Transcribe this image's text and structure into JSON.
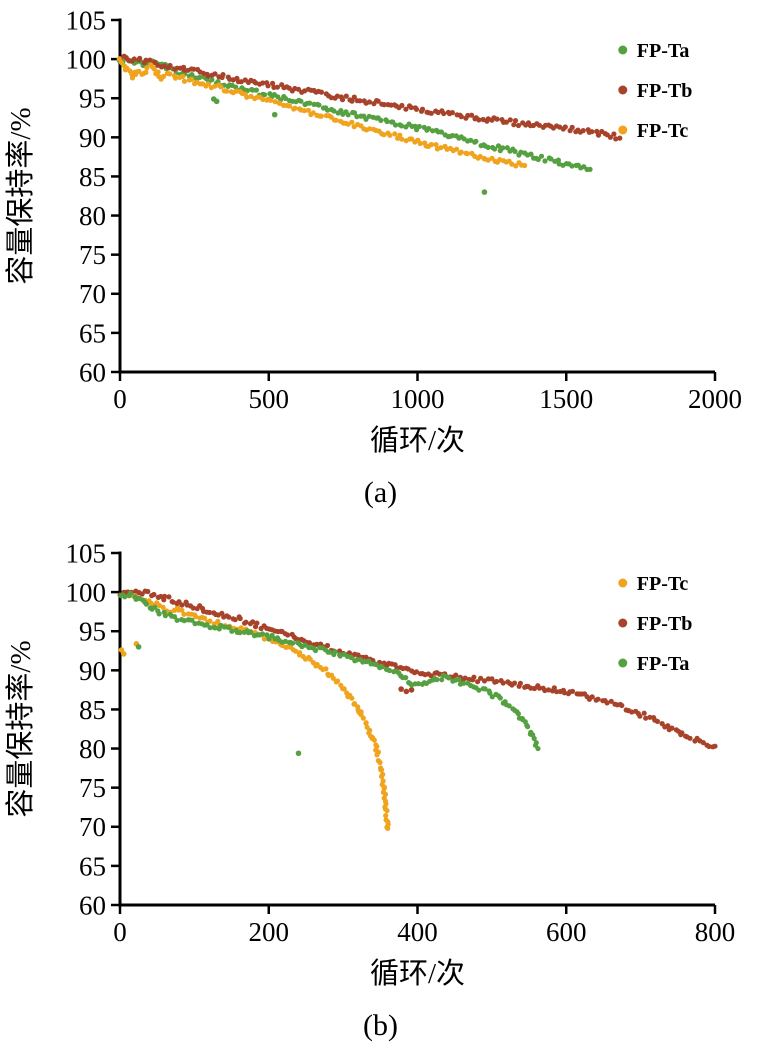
{
  "chart_data": [
    {
      "type": "scatter",
      "panel": "(a)",
      "xlabel": "循环/次",
      "ylabel": "容量保持率/%",
      "xlim": [
        0,
        2000
      ],
      "ylim": [
        60,
        105
      ],
      "x_ticks": [
        0,
        500,
        1000,
        1500,
        2000
      ],
      "y_ticks": [
        60,
        65,
        70,
        75,
        80,
        85,
        90,
        95,
        100,
        105
      ],
      "grid": false,
      "legend_position": "top-right",
      "legend": [
        "FP-Ta",
        "FP-Tb",
        "FP-Tc"
      ],
      "series": [
        {
          "name": "FP-Ta",
          "color": "#55A041",
          "anchors": [
            [
              0,
              99.7
            ],
            [
              40,
              99.9
            ],
            [
              80,
              99.2
            ],
            [
              120,
              99.6
            ],
            [
              160,
              98.9
            ],
            [
              200,
              98.3
            ],
            [
              260,
              97.7
            ],
            [
              320,
              97.0
            ],
            [
              400,
              96.3
            ],
            [
              500,
              95.4
            ],
            [
              600,
              94.5
            ],
            [
              700,
              93.6
            ],
            [
              800,
              92.8
            ],
            [
              900,
              92.0
            ],
            [
              1000,
              91.2
            ],
            [
              1100,
              90.3
            ],
            [
              1200,
              89.3
            ],
            [
              1300,
              88.4
            ],
            [
              1400,
              87.5
            ],
            [
              1500,
              86.6
            ],
            [
              1580,
              85.9
            ]
          ],
          "outliers": [
            [
              315,
              94.9
            ],
            [
              325,
              94.6
            ],
            [
              520,
              92.9
            ],
            [
              1225,
              83.0
            ]
          ]
        },
        {
          "name": "FP-Tb",
          "color": "#A8432B",
          "anchors": [
            [
              0,
              100.2
            ],
            [
              50,
              100.0
            ],
            [
              100,
              99.6
            ],
            [
              150,
              99.2
            ],
            [
              200,
              98.8
            ],
            [
              300,
              98.1
            ],
            [
              400,
              97.4
            ],
            [
              500,
              96.7
            ],
            [
              600,
              96.1
            ],
            [
              700,
              95.4
            ],
            [
              800,
              94.8
            ],
            [
              900,
              94.2
            ],
            [
              1000,
              93.6
            ],
            [
              1100,
              93.0
            ],
            [
              1200,
              92.5
            ],
            [
              1300,
              92.0
            ],
            [
              1400,
              91.5
            ],
            [
              1500,
              91.1
            ],
            [
              1600,
              90.6
            ],
            [
              1650,
              90.3
            ],
            [
              1680,
              89.9
            ]
          ],
          "outliers": []
        },
        {
          "name": "FP-Tc",
          "color": "#F0A41E",
          "anchors": [
            [
              0,
              99.9
            ],
            [
              15,
              99.2
            ],
            [
              30,
              98.2
            ],
            [
              45,
              97.8
            ],
            [
              60,
              98.6
            ],
            [
              80,
              97.9
            ],
            [
              100,
              99.0
            ],
            [
              120,
              98.3
            ],
            [
              140,
              97.6
            ],
            [
              160,
              98.0
            ],
            [
              200,
              97.6
            ],
            [
              300,
              96.7
            ],
            [
              400,
              95.7
            ],
            [
              500,
              94.7
            ],
            [
              600,
              93.6
            ],
            [
              700,
              92.5
            ],
            [
              800,
              91.5
            ],
            [
              900,
              90.4
            ],
            [
              1000,
              89.4
            ],
            [
              1100,
              88.5
            ],
            [
              1200,
              87.5
            ],
            [
              1280,
              86.9
            ],
            [
              1360,
              86.4
            ]
          ],
          "outliers": []
        }
      ]
    },
    {
      "type": "scatter",
      "panel": "(b)",
      "xlabel": "循环/次",
      "ylabel": "容量保持率/%",
      "xlim": [
        0,
        800
      ],
      "ylim": [
        60,
        105
      ],
      "x_ticks": [
        0,
        200,
        400,
        600,
        800
      ],
      "y_ticks": [
        60,
        65,
        70,
        75,
        80,
        85,
        90,
        95,
        100,
        105
      ],
      "grid": false,
      "legend_position": "top-right",
      "legend": [
        "FP-Tc",
        "FP-Tb",
        "FP-Ta"
      ],
      "series": [
        {
          "name": "FP-Tc",
          "color": "#F0A41E",
          "anchors": [
            [
              8,
              99.7
            ],
            [
              20,
              99.4
            ],
            [
              35,
              98.9
            ],
            [
              50,
              98.4
            ],
            [
              65,
              97.6
            ],
            [
              80,
              97.9
            ],
            [
              95,
              97.0
            ],
            [
              110,
              96.5
            ],
            [
              130,
              96.0
            ],
            [
              150,
              95.5
            ],
            [
              170,
              95.0
            ],
            [
              190,
              94.4
            ],
            [
              210,
              93.7
            ],
            [
              230,
              92.8
            ],
            [
              250,
              91.7
            ],
            [
              270,
              90.4
            ],
            [
              285,
              89.2
            ],
            [
              300,
              87.8
            ],
            [
              312,
              86.3
            ],
            [
              322,
              84.8
            ],
            [
              331,
              83.2
            ],
            [
              339,
              81.5
            ],
            [
              345,
              79.8
            ],
            [
              350,
              77.8
            ],
            [
              354,
              75.5
            ],
            [
              357,
              73.0
            ],
            [
              359,
              70.8
            ],
            [
              360,
              69.8
            ]
          ],
          "outliers": [
            [
              2,
              92.6
            ],
            [
              5,
              92.1
            ],
            [
              22,
              93.4
            ]
          ]
        },
        {
          "name": "FP-Tb",
          "color": "#A8432B",
          "anchors": [
            [
              0,
              99.9
            ],
            [
              25,
              100.1
            ],
            [
              50,
              99.5
            ],
            [
              80,
              98.7
            ],
            [
              110,
              97.9
            ],
            [
              140,
              97.1
            ],
            [
              170,
              96.2
            ],
            [
              200,
              95.3
            ],
            [
              230,
              94.4
            ],
            [
              260,
              93.5
            ],
            [
              290,
              92.6
            ],
            [
              320,
              91.7
            ],
            [
              350,
              90.9
            ],
            [
              380,
              90.2
            ],
            [
              400,
              89.8
            ],
            [
              430,
              89.4
            ],
            [
              460,
              89.0
            ],
            [
              490,
              88.7
            ],
            [
              520,
              88.4
            ],
            [
              550,
              88.0
            ],
            [
              580,
              87.6
            ],
            [
              610,
              87.1
            ],
            [
              640,
              86.4
            ],
            [
              660,
              85.8
            ],
            [
              680,
              85.1
            ],
            [
              700,
              84.4
            ],
            [
              720,
              83.6
            ],
            [
              740,
              82.7
            ],
            [
              760,
              81.7
            ],
            [
              780,
              80.9
            ],
            [
              800,
              80.3
            ]
          ],
          "outliers": [
            [
              378,
              87.6
            ],
            [
              385,
              87.3
            ],
            [
              392,
              87.5
            ]
          ]
        },
        {
          "name": "FP-Ta",
          "color": "#55A041",
          "anchors": [
            [
              0,
              99.4
            ],
            [
              15,
              99.7
            ],
            [
              30,
              98.8
            ],
            [
              50,
              97.6
            ],
            [
              70,
              96.8
            ],
            [
              90,
              96.4
            ],
            [
              110,
              95.9
            ],
            [
              140,
              95.4
            ],
            [
              170,
              94.9
            ],
            [
              200,
              94.3
            ],
            [
              230,
              93.6
            ],
            [
              260,
              92.9
            ],
            [
              290,
              92.1
            ],
            [
              320,
              91.3
            ],
            [
              350,
              90.5
            ],
            [
              375,
              89.8
            ],
            [
              390,
              88.4
            ],
            [
              405,
              88.1
            ],
            [
              420,
              88.9
            ],
            [
              435,
              89.1
            ],
            [
              455,
              88.6
            ],
            [
              475,
              88.0
            ],
            [
              495,
              87.2
            ],
            [
              515,
              86.1
            ],
            [
              530,
              84.9
            ],
            [
              545,
              83.2
            ],
            [
              555,
              81.5
            ],
            [
              562,
              80.0
            ]
          ],
          "outliers": [
            [
              25,
              93.0
            ],
            [
              240,
              79.4
            ]
          ]
        }
      ]
    }
  ]
}
